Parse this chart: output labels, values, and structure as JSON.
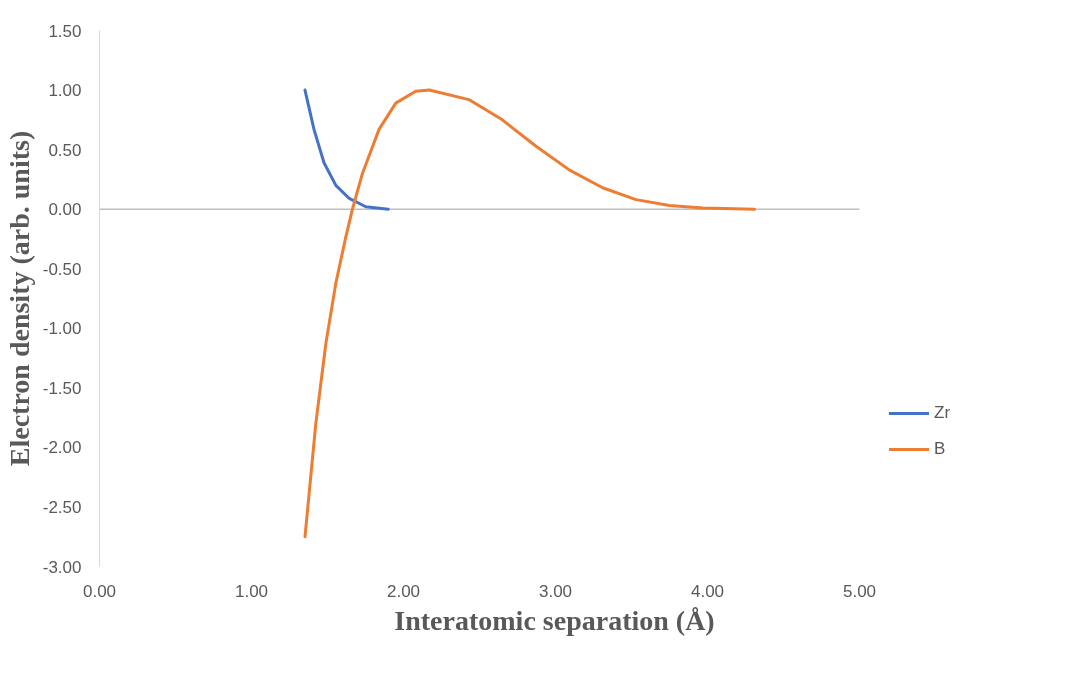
{
  "chart_data": {
    "type": "line",
    "xlabel": "Interatomic separation (Å)",
    "ylabel": "Electron density (arb. units)",
    "xlim": [
      0,
      5
    ],
    "xticks": [
      {
        "value": 0,
        "label": "0.00"
      },
      {
        "value": 1,
        "label": "1.00"
      },
      {
        "value": 2,
        "label": "2.00"
      },
      {
        "value": 3,
        "label": "3.00"
      },
      {
        "value": 4,
        "label": "4.00"
      },
      {
        "value": 5,
        "label": "5.00"
      }
    ],
    "ylim": [
      -3,
      1.5
    ],
    "yticks": [
      {
        "value": -3,
        "label": "-3.00"
      },
      {
        "value": -2.5,
        "label": "-2.50"
      },
      {
        "value": -2,
        "label": "-2.00"
      },
      {
        "value": -1.5,
        "label": "-1.50"
      },
      {
        "value": -1,
        "label": "-1.00"
      },
      {
        "value": -0.5,
        "label": "-0.50"
      },
      {
        "value": 0,
        "label": "0.00"
      },
      {
        "value": 0.5,
        "label": "0.50"
      },
      {
        "value": 1,
        "label": "1.00"
      },
      {
        "value": 1.5,
        "label": "1.50"
      }
    ],
    "grid": false,
    "legend": "right",
    "marker": "none",
    "line_style": "solid",
    "ref_lines": [
      {
        "axis": "y",
        "value": 0,
        "label": null,
        "color": "#bfbfbf"
      }
    ],
    "series": [
      {
        "name": "Zr",
        "color": "#4472c4",
        "x": [
          1.352,
          1.411,
          1.477,
          1.555,
          1.643,
          1.752,
          1.9
        ],
        "values": [
          1.0,
          0.67,
          0.39,
          0.2,
          0.09,
          0.02,
          0.0
        ]
      },
      {
        "name": "B",
        "color": "#ed7d31",
        "x": [
          1.352,
          1.423,
          1.489,
          1.555,
          1.621,
          1.664,
          1.73,
          1.839,
          1.949,
          2.08,
          2.17,
          2.43,
          2.65,
          2.87,
          3.09,
          3.31,
          3.53,
          3.75,
          3.97,
          4.31
        ],
        "values": [
          -2.75,
          -1.8,
          -1.13,
          -0.62,
          -0.23,
          0.0,
          0.3,
          0.67,
          0.89,
          0.99,
          1.0,
          0.92,
          0.75,
          0.53,
          0.33,
          0.18,
          0.08,
          0.03,
          0.01,
          0.0
        ]
      }
    ]
  }
}
